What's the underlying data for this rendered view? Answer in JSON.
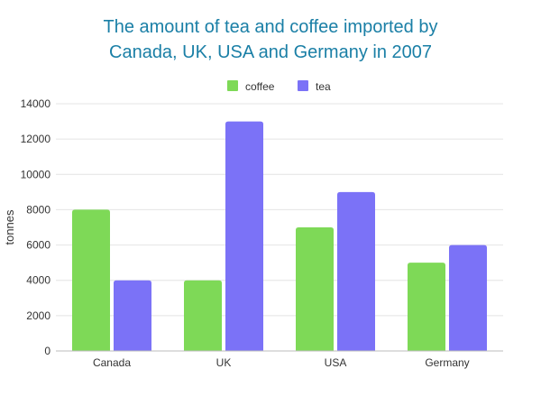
{
  "chart_data": {
    "type": "bar",
    "title_line1": "The amount of tea and coffee imported by",
    "title_line2": "Canada, UK, USA and Germany in 2007",
    "xlabel": "",
    "ylabel": "tonnes",
    "categories": [
      "Canada",
      "UK",
      "USA",
      "Germany"
    ],
    "series": [
      {
        "name": "coffee",
        "color": "#7ed957",
        "values": [
          8000,
          4000,
          7000,
          5000
        ]
      },
      {
        "name": "tea",
        "color": "#7b72f7",
        "values": [
          4000,
          13000,
          9000,
          6000
        ]
      }
    ],
    "ylim": [
      0,
      14000
    ],
    "yticks": [
      0,
      2000,
      4000,
      6000,
      8000,
      10000,
      12000,
      14000
    ],
    "grid": true,
    "legend_position": "top-center"
  }
}
